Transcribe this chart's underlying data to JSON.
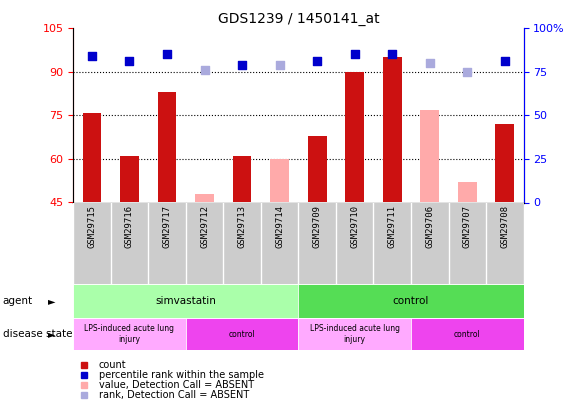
{
  "title": "GDS1239 / 1450141_at",
  "samples": [
    "GSM29715",
    "GSM29716",
    "GSM29717",
    "GSM29712",
    "GSM29713",
    "GSM29714",
    "GSM29709",
    "GSM29710",
    "GSM29711",
    "GSM29706",
    "GSM29707",
    "GSM29708"
  ],
  "count_values": [
    76,
    61,
    83,
    null,
    61,
    null,
    68,
    90,
    95,
    null,
    null,
    72
  ],
  "count_absent": [
    null,
    null,
    null,
    48,
    null,
    60,
    null,
    null,
    null,
    77,
    52,
    null
  ],
  "rank_values": [
    84,
    81,
    85,
    null,
    79,
    null,
    81,
    85,
    85,
    null,
    null,
    81
  ],
  "rank_absent": [
    null,
    null,
    null,
    76,
    null,
    79,
    null,
    null,
    null,
    80,
    75,
    null
  ],
  "ylim_left": [
    45,
    105
  ],
  "ylim_right": [
    0,
    100
  ],
  "yticks_left": [
    45,
    60,
    75,
    90,
    105
  ],
  "yticks_right": [
    0,
    25,
    50,
    75,
    100
  ],
  "ytick_labels_right": [
    "0",
    "25",
    "50",
    "75",
    "100%"
  ],
  "agent_groups": [
    {
      "label": "simvastatin",
      "start": 0,
      "end": 6,
      "color": "#aaffaa"
    },
    {
      "label": "control",
      "start": 6,
      "end": 12,
      "color": "#55dd55"
    }
  ],
  "disease_groups": [
    {
      "label": "LPS-induced acute lung\ninjury",
      "start": 0,
      "end": 3,
      "color": "#ffaaff"
    },
    {
      "label": "control",
      "start": 3,
      "end": 6,
      "color": "#ee44ee"
    },
    {
      "label": "LPS-induced acute lung\ninjury",
      "start": 6,
      "end": 9,
      "color": "#ffaaff"
    },
    {
      "label": "control",
      "start": 9,
      "end": 12,
      "color": "#ee44ee"
    }
  ],
  "bar_color_present": "#cc1111",
  "bar_color_absent": "#ffaaaa",
  "dot_color_present": "#0000cc",
  "dot_color_absent": "#aaaadd",
  "dot_size": 30,
  "background_color": "#ffffff",
  "legend_items": [
    {
      "label": "count",
      "color": "#cc1111"
    },
    {
      "label": "percentile rank within the sample",
      "color": "#0000cc"
    },
    {
      "label": "value, Detection Call = ABSENT",
      "color": "#ffaaaa"
    },
    {
      "label": "rank, Detection Call = ABSENT",
      "color": "#aaaadd"
    }
  ]
}
